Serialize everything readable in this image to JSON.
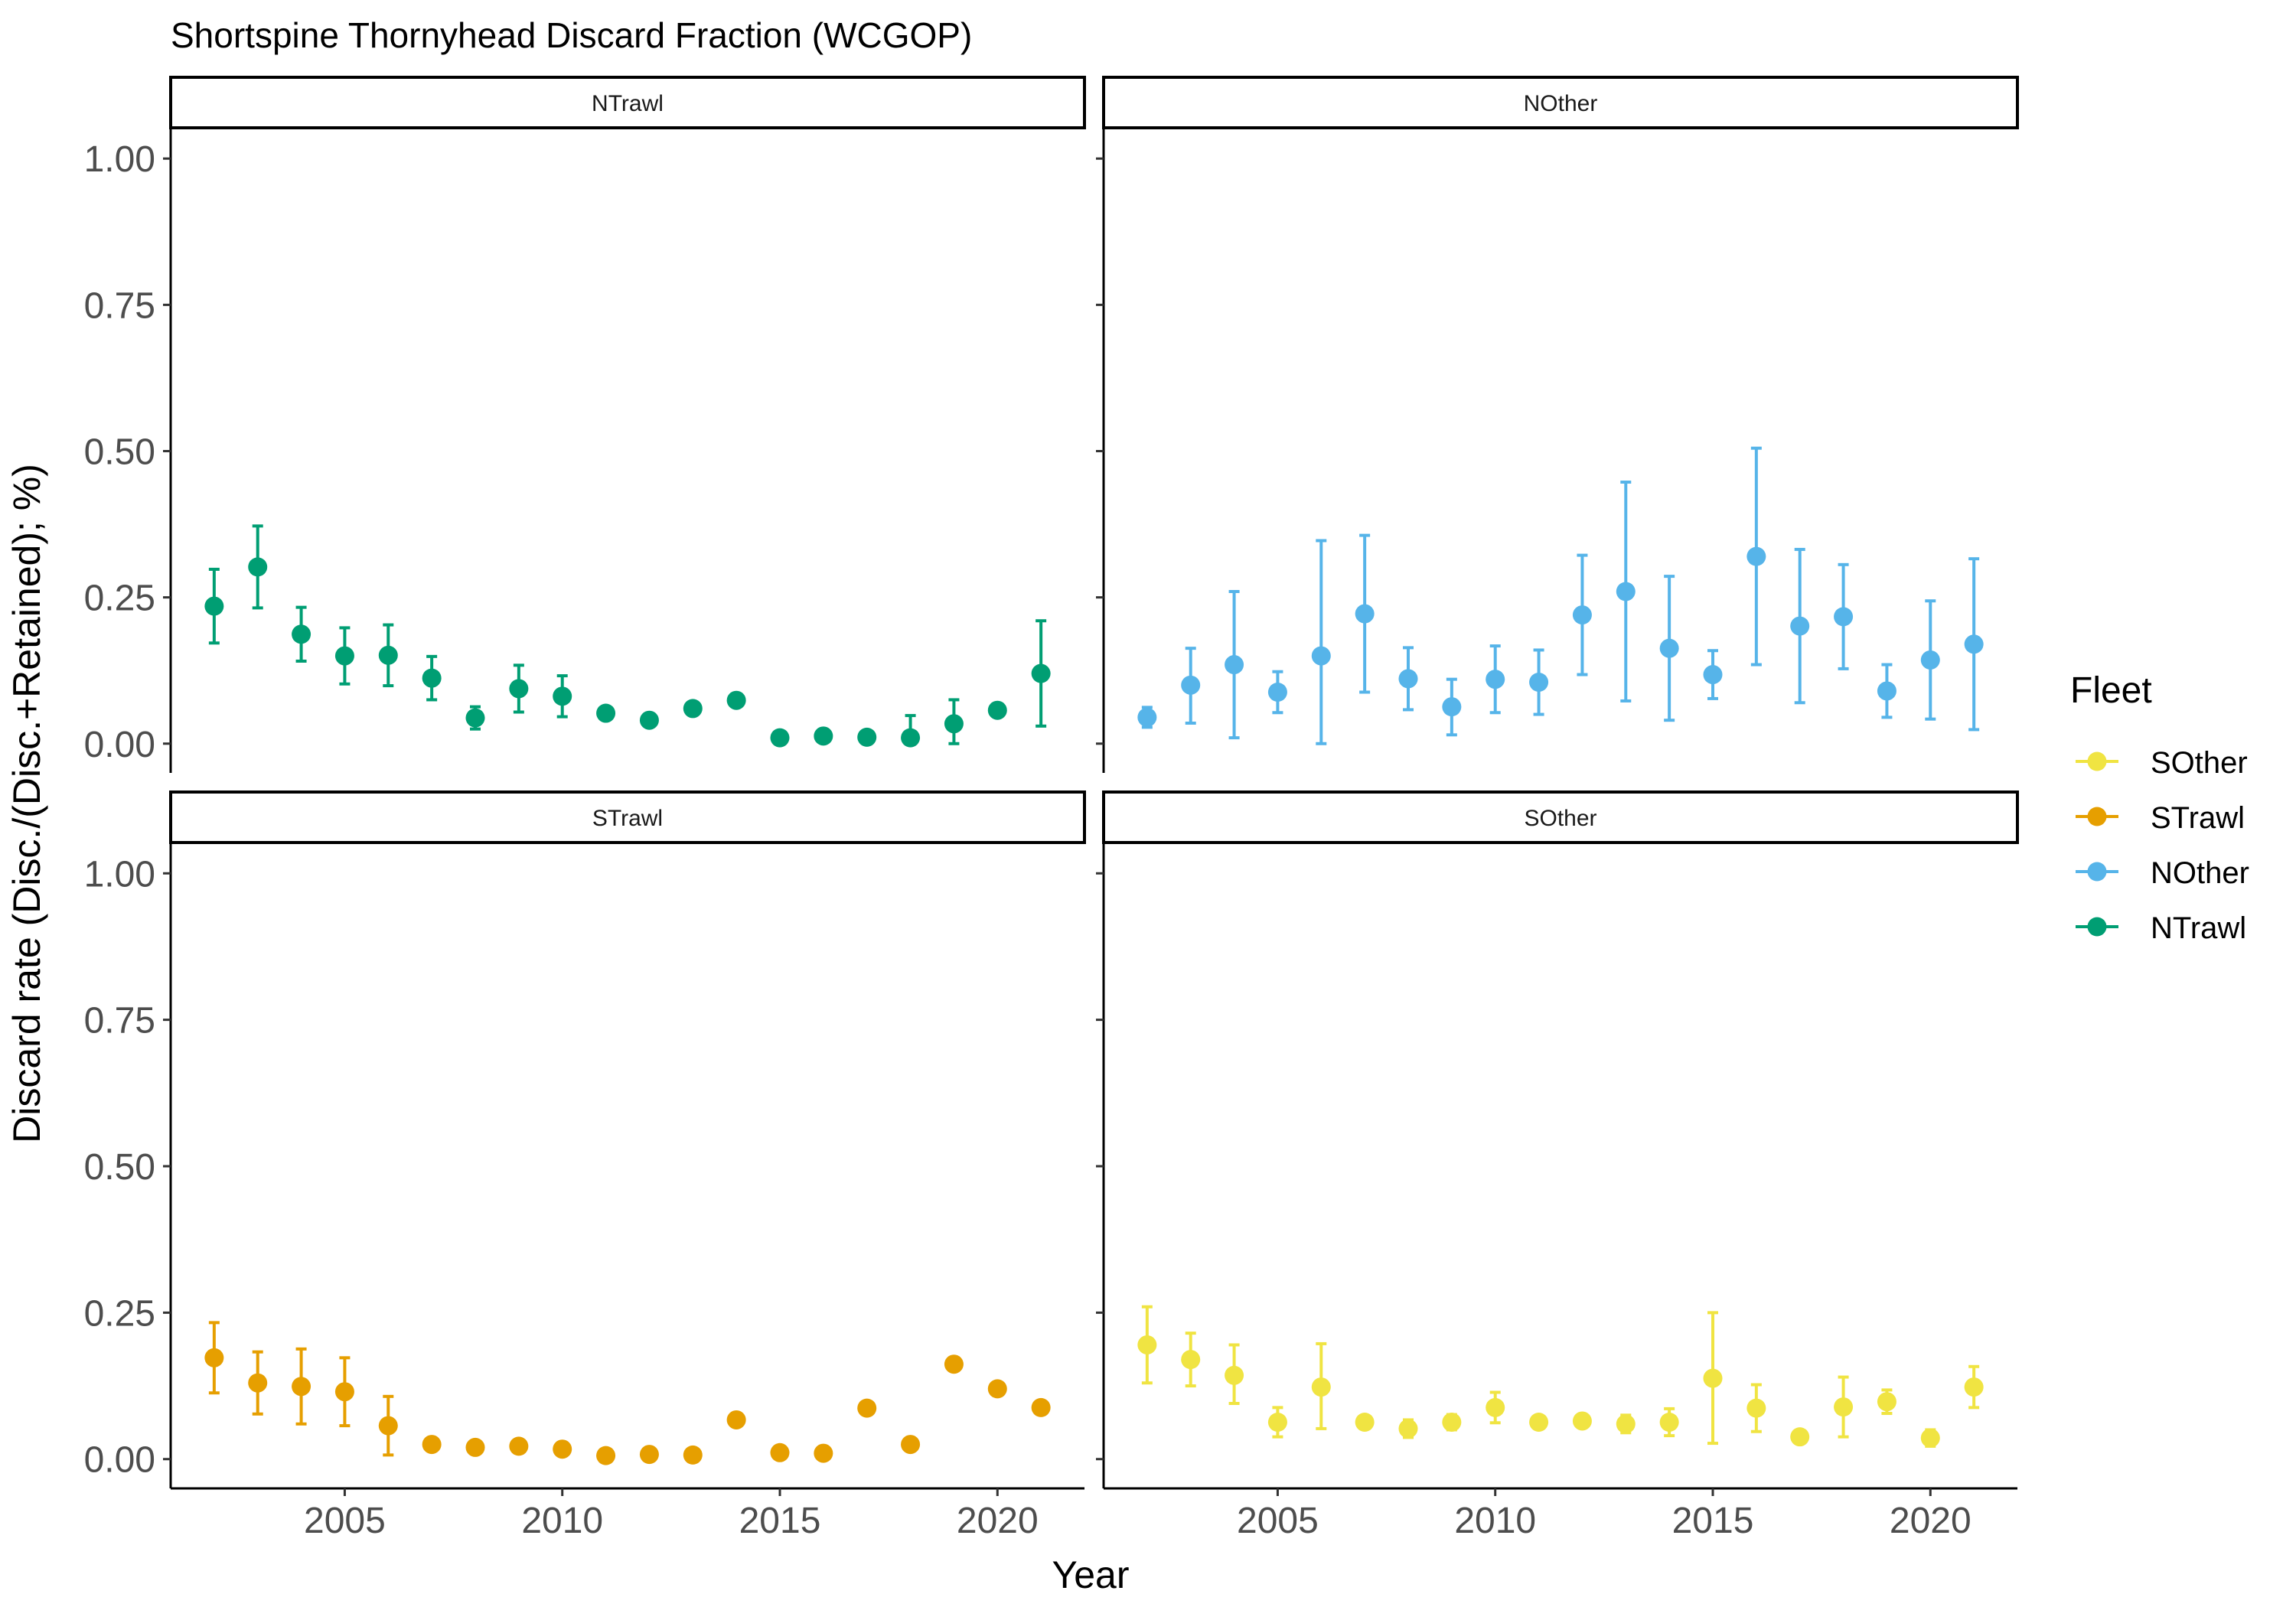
{
  "title": "Shortspine Thornyhead Discard Fraction (WCGOP)",
  "xlabel": "Year",
  "ylabel": "Discard rate (Disc./(Disc.+Retained); %)",
  "legend": {
    "title": "Fleet",
    "entries": [
      {
        "label": "SOther",
        "color": "#F0E442"
      },
      {
        "label": "STrawl",
        "color": "#E69F00"
      },
      {
        "label": "NOther",
        "color": "#56B4E9"
      },
      {
        "label": "NTrawl",
        "color": "#009E73"
      }
    ]
  },
  "chart_data": {
    "type": "scatter",
    "error_bars": true,
    "facets": [
      "NTrawl",
      "NOther",
      "STrawl",
      "SOther"
    ],
    "xlim": [
      2001,
      2022
    ],
    "ylim": [
      -0.05,
      1.05
    ],
    "xticks": [
      2005,
      2010,
      2015,
      2020
    ],
    "yticks": [
      0.0,
      0.25,
      0.5,
      0.75,
      1.0
    ],
    "ytick_labels": [
      "0.00",
      "0.25",
      "0.50",
      "0.75",
      "1.00"
    ],
    "grid": false,
    "legend_position": "right",
    "series": [
      {
        "name": "NTrawl",
        "color": "#009E73",
        "x": [
          2002,
          2003,
          2004,
          2005,
          2006,
          2007,
          2008,
          2009,
          2010,
          2011,
          2012,
          2013,
          2014,
          2015,
          2016,
          2017,
          2018,
          2019,
          2020,
          2021
        ],
        "y": [
          0.235,
          0.302,
          0.187,
          0.15,
          0.151,
          0.112,
          0.044,
          0.094,
          0.081,
          0.052,
          0.04,
          0.06,
          0.074,
          0.01,
          0.013,
          0.011,
          0.01,
          0.034,
          0.057,
          0.12
        ],
        "lower": [
          0.172,
          0.232,
          0.141,
          0.102,
          0.099,
          0.075,
          0.025,
          0.054,
          0.046,
          0.05,
          0.038,
          0.058,
          0.072,
          0.008,
          0.011,
          0.003,
          0.0,
          0.0,
          0.055,
          0.03
        ],
        "upper": [
          0.298,
          0.372,
          0.233,
          0.198,
          0.203,
          0.149,
          0.063,
          0.134,
          0.116,
          0.054,
          0.042,
          0.062,
          0.076,
          0.012,
          0.015,
          0.019,
          0.048,
          0.075,
          0.059,
          0.21
        ]
      },
      {
        "name": "NOther",
        "color": "#56B4E9",
        "x": [
          2002,
          2003,
          2004,
          2005,
          2006,
          2007,
          2008,
          2009,
          2010,
          2011,
          2012,
          2013,
          2014,
          2015,
          2016,
          2017,
          2018,
          2019,
          2020,
          2021
        ],
        "y": [
          0.045,
          0.1,
          0.135,
          0.088,
          0.15,
          0.222,
          0.111,
          0.063,
          0.11,
          0.105,
          0.22,
          0.26,
          0.163,
          0.118,
          0.32,
          0.201,
          0.217,
          0.09,
          0.143,
          0.17
        ],
        "lower": [
          0.028,
          0.035,
          0.01,
          0.053,
          0.0,
          0.088,
          0.058,
          0.015,
          0.053,
          0.05,
          0.118,
          0.073,
          0.04,
          0.077,
          0.135,
          0.07,
          0.128,
          0.045,
          0.042,
          0.024
        ],
        "upper": [
          0.062,
          0.163,
          0.26,
          0.123,
          0.347,
          0.356,
          0.164,
          0.11,
          0.167,
          0.16,
          0.322,
          0.447,
          0.286,
          0.159,
          0.505,
          0.332,
          0.306,
          0.135,
          0.244,
          0.316
        ]
      },
      {
        "name": "STrawl",
        "color": "#E69F00",
        "x": [
          2002,
          2003,
          2004,
          2005,
          2006,
          2007,
          2008,
          2009,
          2010,
          2011,
          2012,
          2013,
          2014,
          2015,
          2016,
          2017,
          2018,
          2019,
          2020,
          2021
        ],
        "y": [
          0.173,
          0.13,
          0.124,
          0.115,
          0.057,
          0.025,
          0.02,
          0.022,
          0.017,
          0.006,
          0.008,
          0.007,
          0.067,
          0.011,
          0.01,
          0.087,
          0.025,
          0.162,
          0.12,
          0.088
        ],
        "lower": [
          0.113,
          0.077,
          0.06,
          0.057,
          0.007,
          0.023,
          0.018,
          0.02,
          0.015,
          0.004,
          0.006,
          0.005,
          0.065,
          0.009,
          0.008,
          0.085,
          0.023,
          0.16,
          0.118,
          0.086
        ],
        "upper": [
          0.233,
          0.183,
          0.188,
          0.173,
          0.107,
          0.027,
          0.022,
          0.024,
          0.019,
          0.008,
          0.01,
          0.009,
          0.069,
          0.013,
          0.012,
          0.089,
          0.027,
          0.164,
          0.122,
          0.09
        ]
      },
      {
        "name": "SOther",
        "color": "#F0E442",
        "x": [
          2002,
          2003,
          2004,
          2005,
          2006,
          2007,
          2008,
          2009,
          2010,
          2011,
          2012,
          2013,
          2014,
          2015,
          2016,
          2017,
          2018,
          2019,
          2020,
          2021
        ],
        "y": [
          0.195,
          0.17,
          0.143,
          0.063,
          0.123,
          0.063,
          0.052,
          0.063,
          0.088,
          0.063,
          0.065,
          0.06,
          0.063,
          0.138,
          0.087,
          0.038,
          0.089,
          0.098,
          0.036,
          0.123
        ],
        "lower": [
          0.13,
          0.125,
          0.095,
          0.038,
          0.052,
          0.058,
          0.037,
          0.05,
          0.062,
          0.058,
          0.058,
          0.045,
          0.04,
          0.027,
          0.047,
          0.03,
          0.038,
          0.078,
          0.022,
          0.088
        ],
        "upper": [
          0.26,
          0.215,
          0.195,
          0.088,
          0.197,
          0.068,
          0.067,
          0.076,
          0.114,
          0.068,
          0.072,
          0.075,
          0.086,
          0.25,
          0.127,
          0.046,
          0.14,
          0.118,
          0.05,
          0.158
        ]
      }
    ]
  }
}
